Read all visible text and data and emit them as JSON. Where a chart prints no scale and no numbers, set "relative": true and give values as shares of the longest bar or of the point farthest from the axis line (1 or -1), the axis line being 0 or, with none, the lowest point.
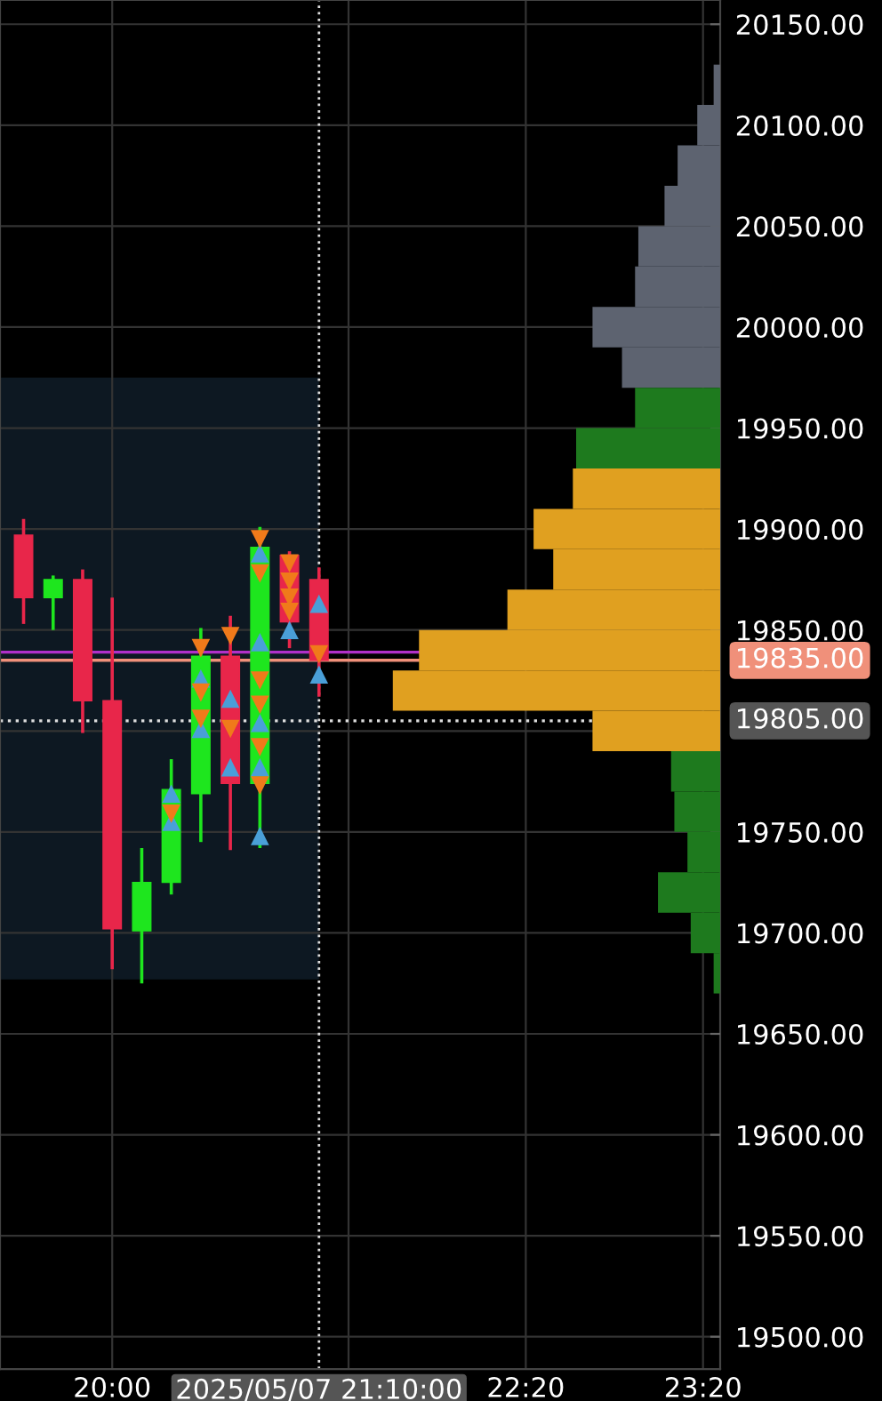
{
  "chart_data": [
    {
      "type": "candlestick",
      "x": [
        19.5,
        19.6667,
        19.8333,
        20.0,
        20.1667,
        20.3333,
        20.5,
        20.6667,
        20.8333,
        21.0,
        21.1667
      ],
      "ohlc": [
        [
          19897,
          19905,
          19853,
          19866
        ],
        [
          19866,
          19877,
          19850,
          19875
        ],
        [
          19875,
          19880,
          19799,
          19815
        ],
        [
          19815,
          19866,
          19682,
          19702
        ],
        [
          19701,
          19742,
          19675,
          19725
        ],
        [
          19725,
          19786,
          19719,
          19771
        ],
        [
          19769,
          19851,
          19745,
          19837
        ],
        [
          19837,
          19857,
          19741,
          19774
        ],
        [
          19774,
          19901,
          19742,
          19891
        ],
        [
          19887,
          19889,
          19841,
          19854
        ],
        [
          19875,
          19881,
          19817,
          19835
        ]
      ],
      "colors": [
        "#e8264a",
        "#1ee61e",
        "#e8264a",
        "#e8264a",
        "#1ee61e",
        "#1ee61e",
        "#1ee61e",
        "#e8264a",
        "#1ee61e",
        "#e8264a",
        "#e8264a"
      ],
      "series": [
        {
          "type": "scatter",
          "marker": "triangle",
          "color": "#4a9fd8",
          "x": [
            20.3333,
            20.3333,
            20.5,
            20.5,
            20.6667,
            20.6667,
            20.8333,
            20.8333,
            20.8333,
            20.8333,
            20.8333,
            21.0,
            21.1667,
            21.1667
          ],
          "values": [
            19769,
            19755,
            19826,
            19801,
            19816,
            19782,
            19888,
            19844,
            19804,
            19782,
            19748,
            19850,
            19863,
            19828
          ]
        },
        {
          "type": "scatter",
          "marker": "triangle_down",
          "color": "#f07a1a",
          "x": [
            20.3333,
            20.5,
            20.5,
            20.5,
            20.6667,
            20.6667,
            20.8333,
            20.8333,
            20.8333,
            20.8333,
            20.8333,
            20.8333,
            21.0,
            21.0,
            21.0,
            21.0,
            21.1667
          ],
          "values": [
            19759,
            19841,
            19819,
            19806,
            19847,
            19801,
            19895,
            19878,
            19825,
            19813,
            19792,
            19773,
            19883,
            19874,
            19866,
            19859,
            19838
          ]
        }
      ],
      "xlim": [
        19.367,
        23.43
      ],
      "xticks": [
        {
          "value": 20.0,
          "label": "20:00"
        },
        {
          "value": 21.3333,
          "label": null
        },
        {
          "value": 22.3333,
          "label": "22:20"
        },
        {
          "value": 23.3333,
          "label": "23:20"
        }
      ],
      "ylim": [
        19484,
        20162
      ],
      "yticks": [
        {
          "value": 19500,
          "label": "19500.00"
        },
        {
          "value": 19550,
          "label": "19550.00"
        },
        {
          "value": 19600,
          "label": "19600.00"
        },
        {
          "value": 19650,
          "label": "19650.00"
        },
        {
          "value": 19700,
          "label": "19700.00"
        },
        {
          "value": 19750,
          "label": "19750.00"
        },
        {
          "value": 19800,
          "label": null
        },
        {
          "value": 19850,
          "label": "19850.00"
        },
        {
          "value": 19900,
          "label": "19900.00"
        },
        {
          "value": 19950,
          "label": "19950.00"
        },
        {
          "value": 20000,
          "label": "20000.00"
        },
        {
          "value": 20050,
          "label": "20050.00"
        },
        {
          "value": 20100,
          "label": "20100.00"
        },
        {
          "value": 20150,
          "label": "20150.00"
        }
      ],
      "grid": true,
      "ref_lines": [
        {
          "axis": "y",
          "value": 19839,
          "color": "#b030c8",
          "line_style": "solid"
        },
        {
          "axis": "y",
          "value": 19835,
          "label": "19835.00",
          "color": "#f0907a",
          "line_style": "solid"
        },
        {
          "axis": "y",
          "value": 19805,
          "label": "19805.00",
          "color": "#dddddd",
          "line_style": "dotted"
        },
        {
          "axis": "x",
          "value": 21.1667,
          "label": "2025/05/07 21:10:00",
          "color": "#dddddd",
          "line_style": "dotted"
        }
      ],
      "bands": [
        {
          "axis": "y",
          "from": 19677,
          "to": 19975,
          "color": "#0d1822"
        }
      ]
    },
    {
      "type": "bar",
      "orientation": "horizontal",
      "relative": true,
      "tick_labels": false,
      "x": [
        20120,
        20100,
        20080,
        20060,
        20040,
        20020,
        20000,
        19980,
        19960,
        19940,
        19920,
        19900,
        19880,
        19860,
        19840,
        19820,
        19800,
        19780,
        19760,
        19740,
        19720,
        19700,
        19680
      ],
      "values": [
        0.02,
        0.07,
        0.13,
        0.17,
        0.25,
        0.26,
        0.39,
        0.3,
        0.26,
        0.44,
        0.45,
        0.57,
        0.51,
        0.65,
        0.92,
        1,
        0.39,
        0.15,
        0.14,
        0.1,
        0.19,
        0.09,
        0.02
      ],
      "colors": [
        "#5d6370",
        "#5d6370",
        "#5d6370",
        "#5d6370",
        "#5d6370",
        "#5d6370",
        "#5d6370",
        "#5d6370",
        "#1e7a1e",
        "#1e7a1e",
        "#e0a020",
        "#e0a020",
        "#e0a020",
        "#e0a020",
        "#e0a020",
        "#e0a020",
        "#e0a020",
        "#1e7a1e",
        "#1e7a1e",
        "#1e7a1e",
        "#1e7a1e",
        "#1e7a1e",
        "#1e7a1e"
      ],
      "ylim": [
        19484,
        20162
      ],
      "yticks": [
        19500,
        19550,
        19600,
        19650,
        19700,
        19750,
        19800,
        19850,
        19900,
        19950,
        20000,
        20050,
        20100,
        20150
      ]
    }
  ]
}
